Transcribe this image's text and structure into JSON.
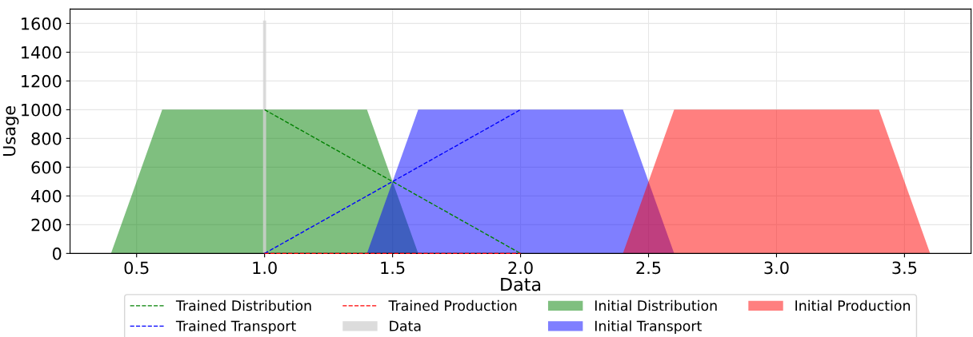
{
  "chart_data": {
    "type": "area",
    "xlabel": "Data",
    "ylabel": "Usage",
    "xlim": [
      0.24,
      3.76
    ],
    "xticks": [
      {
        "value": 0.5,
        "label": "0.5"
      },
      {
        "value": 1.0,
        "label": "1.0"
      },
      {
        "value": 1.5,
        "label": "1.5"
      },
      {
        "value": 2.0,
        "label": "2.0"
      },
      {
        "value": 2.5,
        "label": "2.5"
      },
      {
        "value": 3.0,
        "label": "3.0"
      },
      {
        "value": 3.5,
        "label": "3.5"
      }
    ],
    "ylim": [
      0,
      1700
    ],
    "yticks": [
      0,
      200,
      400,
      600,
      800,
      1000,
      1200,
      1400,
      1600
    ],
    "grid": true,
    "legend": "bottom",
    "line_style": "dashed",
    "series": [
      {
        "name": "Trained Distribution",
        "type": "line",
        "color": "#008000",
        "x": [
          1,
          2
        ],
        "values": [
          1000,
          0
        ]
      },
      {
        "name": "Trained Transport",
        "type": "line",
        "color": "#0000ff",
        "x": [
          1,
          2
        ],
        "values": [
          0,
          1000
        ]
      },
      {
        "name": "Trained Production",
        "type": "line",
        "color": "#ff0000",
        "x": [
          1,
          2
        ],
        "values": [
          0,
          0
        ]
      },
      {
        "name": "Data",
        "type": "bar",
        "color": "#d3d3d3",
        "x": [
          1
        ],
        "values": [
          1620
        ]
      },
      {
        "name": "Initial Distribution",
        "color": "#008000",
        "x": [
          0.4,
          0.6,
          1.4,
          1.6
        ],
        "values": [
          0,
          1000,
          1000,
          0
        ]
      },
      {
        "name": "Initial Transport",
        "color": "#0000ff",
        "x": [
          1.4,
          1.6,
          2.4,
          2.6
        ],
        "values": [
          0,
          1000,
          1000,
          0
        ]
      },
      {
        "name": "Initial Production",
        "color": "#ff0000",
        "x": [
          2.4,
          2.6,
          3.4,
          3.6
        ],
        "values": [
          0,
          1000,
          1000,
          0
        ]
      }
    ]
  }
}
